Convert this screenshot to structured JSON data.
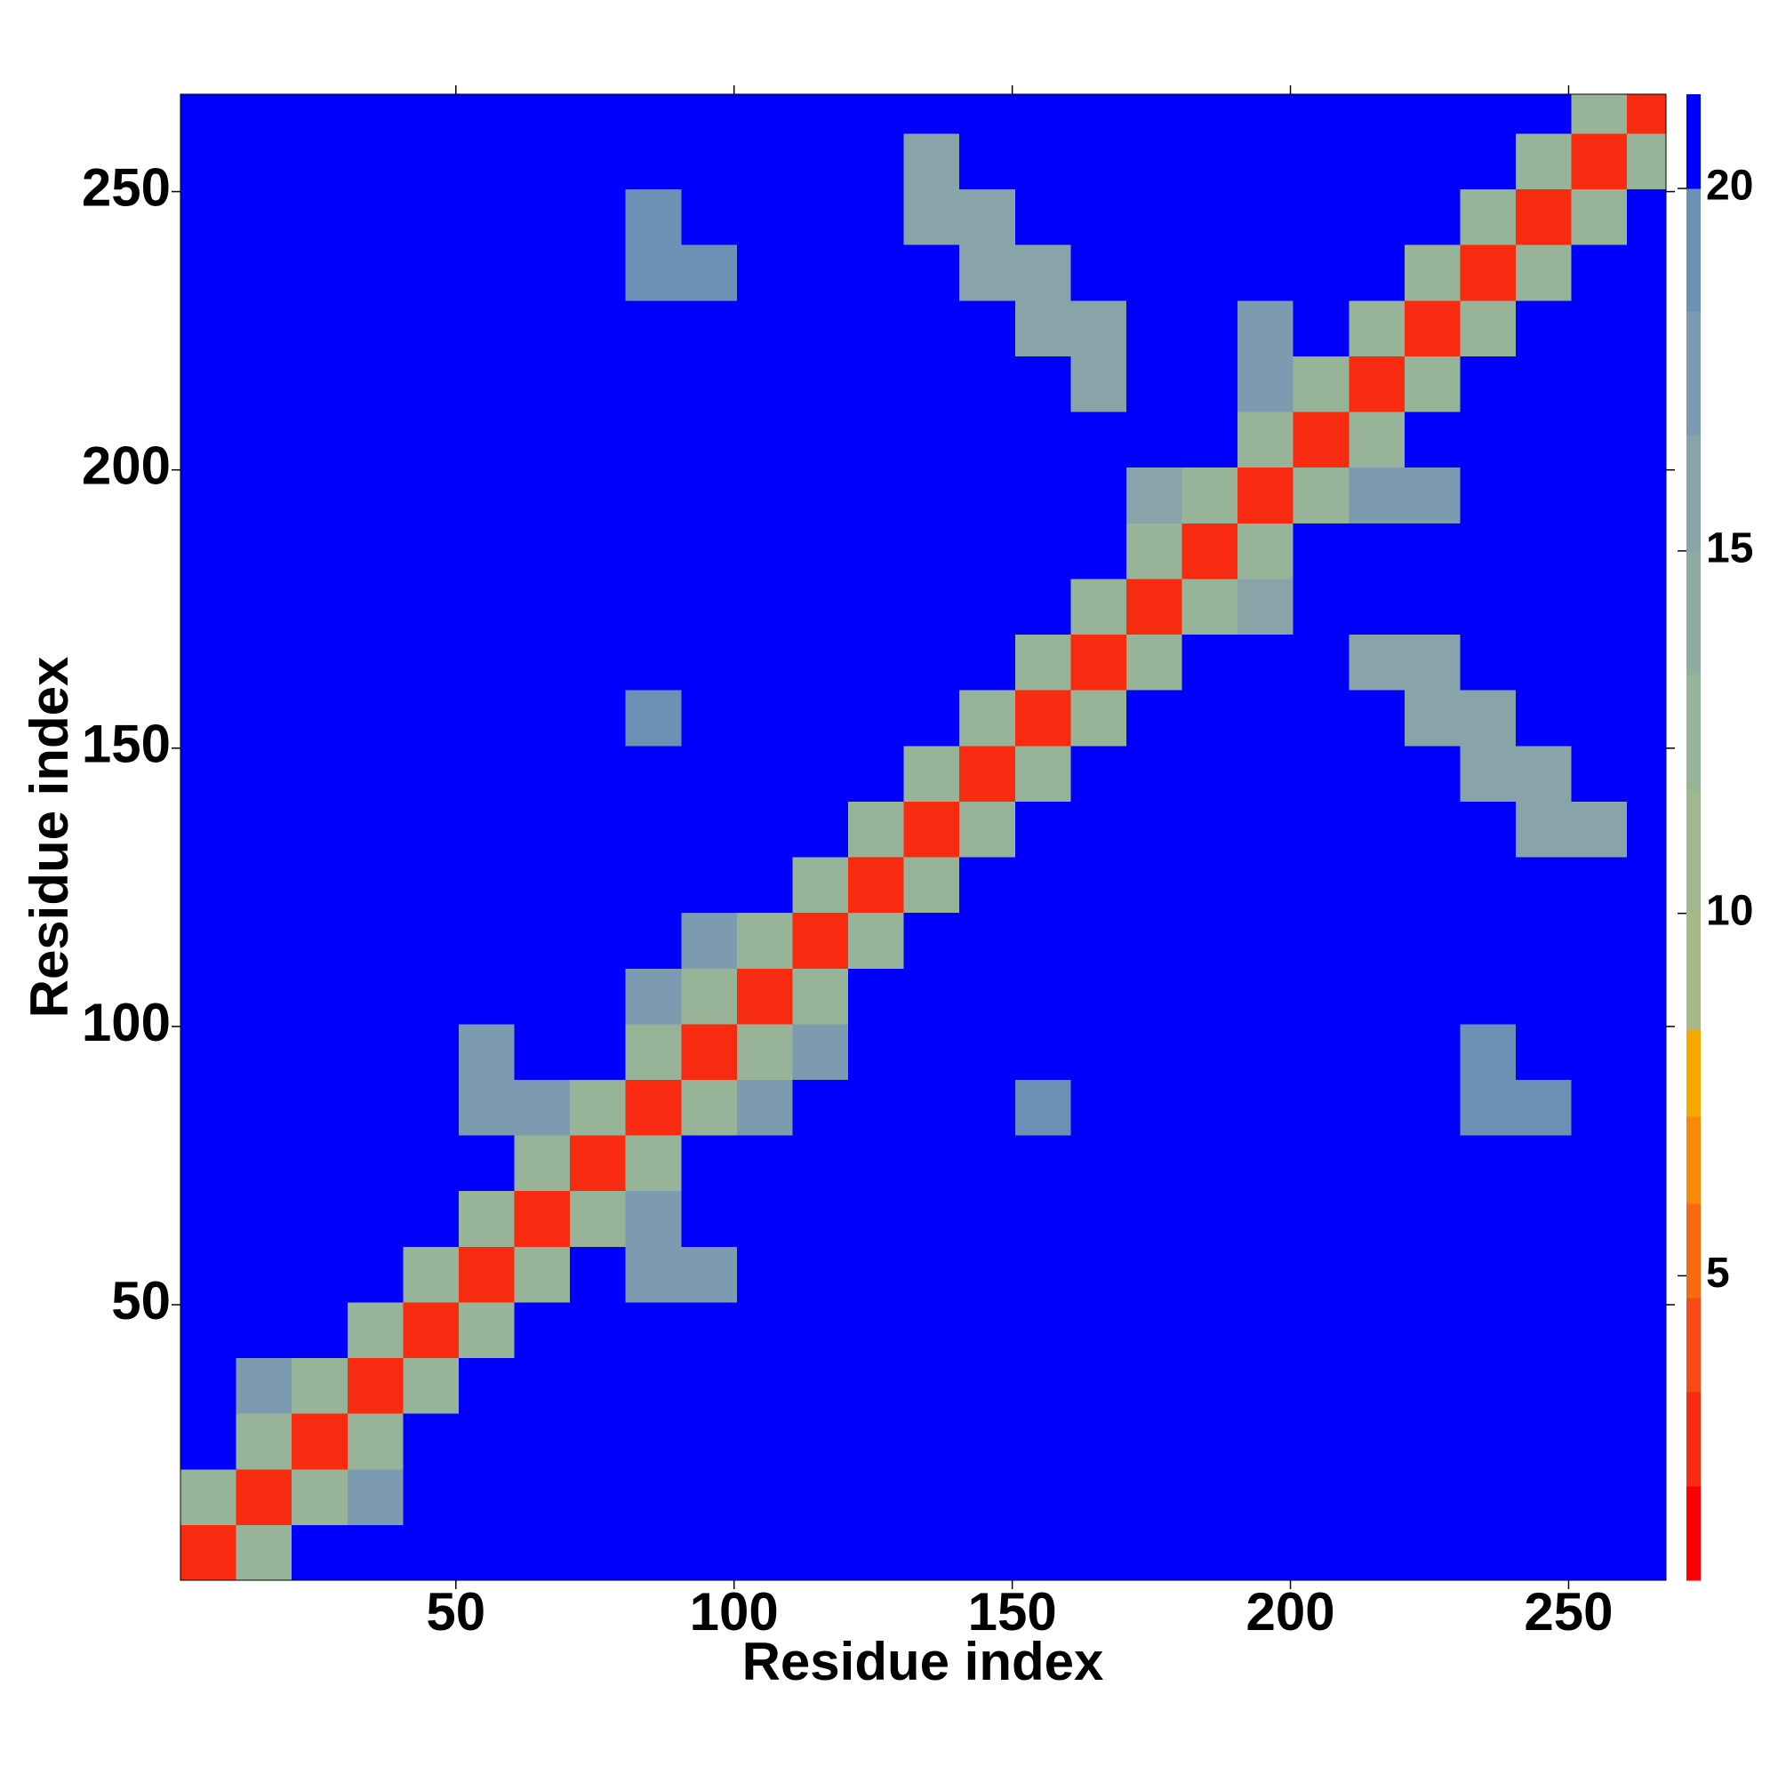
{
  "chart_data": {
    "type": "heatmap",
    "x_label": "Residue index",
    "y_label": "Residue index",
    "xlim": [
      0.5,
      267.5
    ],
    "ylim": [
      0.5,
      267.5
    ],
    "xticks": [
      50,
      100,
      150,
      200,
      250
    ],
    "yticks": [
      50,
      100,
      150,
      200,
      250
    ],
    "xbins": [
      0.5,
      10.5,
      20.5,
      30.5,
      40.5,
      50.5,
      60.5,
      70.5,
      80.5,
      90.5,
      100.5,
      110.5,
      120.5,
      130.5,
      140.5,
      150.5,
      160.5,
      170.5,
      180.5,
      190.5,
      200.5,
      210.5,
      220.5,
      230.5,
      240.5,
      250.5,
      260.5,
      267.5
    ],
    "ybins": [
      0.5,
      10.5,
      20.5,
      30.5,
      40.5,
      50.5,
      60.5,
      70.5,
      80.5,
      90.5,
      100.5,
      110.5,
      120.5,
      130.5,
      140.5,
      150.5,
      160.5,
      170.5,
      180.5,
      190.5,
      200.5,
      210.5,
      220.5,
      230.5,
      240.5,
      250.5,
      260.5,
      267.5
    ],
    "values": [
      [
        3,
        12,
        21,
        21,
        21,
        21,
        21,
        21,
        21,
        21,
        21,
        21,
        21,
        21,
        21,
        21,
        21,
        21,
        21,
        21,
        21,
        21,
        21,
        21,
        21,
        21,
        21
      ],
      [
        12,
        3,
        12,
        17,
        21,
        21,
        21,
        21,
        21,
        21,
        21,
        21,
        21,
        21,
        21,
        21,
        21,
        21,
        21,
        21,
        21,
        21,
        21,
        21,
        21,
        21,
        21
      ],
      [
        21,
        12,
        3,
        12,
        21,
        21,
        21,
        21,
        21,
        21,
        21,
        21,
        21,
        21,
        21,
        21,
        21,
        21,
        21,
        21,
        21,
        21,
        21,
        21,
        21,
        21,
        21
      ],
      [
        21,
        17,
        12,
        3,
        12,
        21,
        21,
        21,
        21,
        21,
        21,
        21,
        21,
        21,
        21,
        21,
        21,
        21,
        21,
        21,
        21,
        21,
        21,
        21,
        21,
        21,
        21
      ],
      [
        21,
        21,
        21,
        12,
        3,
        12,
        21,
        21,
        21,
        21,
        21,
        21,
        21,
        21,
        21,
        21,
        21,
        21,
        21,
        21,
        21,
        21,
        21,
        21,
        21,
        21,
        21
      ],
      [
        21,
        21,
        21,
        21,
        12,
        3,
        12,
        21,
        17,
        17,
        21,
        21,
        21,
        21,
        21,
        21,
        21,
        21,
        21,
        21,
        21,
        21,
        21,
        21,
        21,
        21,
        21
      ],
      [
        21,
        21,
        21,
        21,
        21,
        12,
        3,
        12,
        17,
        21,
        21,
        21,
        21,
        21,
        21,
        21,
        21,
        21,
        21,
        21,
        21,
        21,
        21,
        21,
        21,
        21,
        21
      ],
      [
        21,
        21,
        21,
        21,
        21,
        21,
        12,
        3,
        12,
        21,
        21,
        21,
        21,
        21,
        21,
        21,
        21,
        21,
        21,
        21,
        21,
        21,
        21,
        21,
        21,
        21,
        21
      ],
      [
        21,
        21,
        21,
        21,
        21,
        17,
        17,
        12,
        3,
        12,
        17,
        21,
        21,
        21,
        21,
        19,
        21,
        21,
        21,
        21,
        21,
        21,
        21,
        19,
        19,
        21,
        21
      ],
      [
        21,
        21,
        21,
        21,
        21,
        17,
        21,
        21,
        12,
        3,
        12,
        17,
        21,
        21,
        21,
        21,
        21,
        21,
        21,
        21,
        21,
        21,
        21,
        19,
        21,
        21,
        21
      ],
      [
        21,
        21,
        21,
        21,
        21,
        21,
        21,
        21,
        17,
        12,
        3,
        12,
        21,
        21,
        21,
        21,
        21,
        21,
        21,
        21,
        21,
        21,
        21,
        21,
        21,
        21,
        21
      ],
      [
        21,
        21,
        21,
        21,
        21,
        21,
        21,
        21,
        21,
        17,
        12,
        3,
        12,
        21,
        21,
        21,
        21,
        21,
        21,
        21,
        21,
        21,
        21,
        21,
        21,
        21,
        21
      ],
      [
        21,
        21,
        21,
        21,
        21,
        21,
        21,
        21,
        21,
        21,
        21,
        12,
        3,
        12,
        21,
        21,
        21,
        21,
        21,
        21,
        21,
        21,
        21,
        21,
        21,
        21,
        21
      ],
      [
        21,
        21,
        21,
        21,
        21,
        21,
        21,
        21,
        21,
        21,
        21,
        21,
        12,
        3,
        12,
        21,
        21,
        21,
        21,
        21,
        21,
        21,
        21,
        21,
        16,
        16,
        21
      ],
      [
        21,
        21,
        21,
        21,
        21,
        21,
        21,
        21,
        21,
        21,
        21,
        21,
        21,
        12,
        3,
        12,
        21,
        21,
        21,
        21,
        21,
        21,
        21,
        16,
        16,
        21,
        21
      ],
      [
        21,
        21,
        21,
        21,
        21,
        21,
        21,
        21,
        19,
        21,
        21,
        21,
        21,
        21,
        12,
        3,
        12,
        21,
        21,
        21,
        21,
        21,
        16,
        16,
        21,
        21,
        21
      ],
      [
        21,
        21,
        21,
        21,
        21,
        21,
        21,
        21,
        21,
        21,
        21,
        21,
        21,
        21,
        21,
        12,
        3,
        12,
        21,
        21,
        21,
        16,
        16,
        21,
        21,
        21,
        21
      ],
      [
        21,
        21,
        21,
        21,
        21,
        21,
        21,
        21,
        21,
        21,
        21,
        21,
        21,
        21,
        21,
        21,
        12,
        3,
        12,
        16,
        21,
        21,
        21,
        21,
        21,
        21,
        21
      ],
      [
        21,
        21,
        21,
        21,
        21,
        21,
        21,
        21,
        21,
        21,
        21,
        21,
        21,
        21,
        21,
        21,
        21,
        12,
        3,
        12,
        21,
        21,
        21,
        21,
        21,
        21,
        21
      ],
      [
        21,
        21,
        21,
        21,
        21,
        21,
        21,
        21,
        21,
        21,
        21,
        21,
        21,
        21,
        21,
        21,
        21,
        16,
        12,
        3,
        12,
        18,
        18,
        21,
        21,
        21,
        21
      ],
      [
        21,
        21,
        21,
        21,
        21,
        21,
        21,
        21,
        21,
        21,
        21,
        21,
        21,
        21,
        21,
        21,
        21,
        21,
        21,
        12,
        3,
        12,
        21,
        21,
        21,
        21,
        21
      ],
      [
        21,
        21,
        21,
        21,
        21,
        21,
        21,
        21,
        21,
        21,
        21,
        21,
        21,
        21,
        21,
        21,
        16,
        21,
        21,
        18,
        12,
        3,
        12,
        21,
        21,
        21,
        21
      ],
      [
        21,
        21,
        21,
        21,
        21,
        21,
        21,
        21,
        21,
        21,
        21,
        21,
        21,
        21,
        21,
        16,
        16,
        21,
        21,
        18,
        21,
        12,
        3,
        12,
        21,
        21,
        21
      ],
      [
        21,
        21,
        21,
        21,
        21,
        21,
        21,
        21,
        19,
        19,
        21,
        21,
        21,
        21,
        16,
        16,
        21,
        21,
        21,
        21,
        21,
        21,
        12,
        3,
        12,
        21,
        21
      ],
      [
        21,
        21,
        21,
        21,
        21,
        21,
        21,
        21,
        19,
        21,
        21,
        21,
        21,
        16,
        16,
        21,
        21,
        21,
        21,
        21,
        21,
        21,
        21,
        12,
        3,
        12,
        21
      ],
      [
        21,
        21,
        21,
        21,
        21,
        21,
        21,
        21,
        21,
        21,
        21,
        21,
        21,
        16,
        21,
        21,
        21,
        21,
        21,
        21,
        21,
        21,
        21,
        21,
        12,
        3,
        12
      ],
      [
        21,
        21,
        21,
        21,
        21,
        21,
        21,
        21,
        21,
        21,
        21,
        21,
        21,
        21,
        21,
        21,
        21,
        21,
        21,
        21,
        21,
        21,
        21,
        21,
        21,
        12,
        3
      ]
    ],
    "colorbar": {
      "levels": [
        0.8,
        2.1,
        3.4,
        4.7,
        6.0,
        7.2,
        8.4,
        10.0,
        11.7,
        13.3,
        15.0,
        16.6,
        18.3,
        20.0,
        21.3
      ],
      "colors": [
        "#ff0000",
        "#f82a10",
        "#f74a18",
        "#f86a10",
        "#f88a08",
        "#f8a800",
        "#a8b888",
        "#a0b890",
        "#98b498",
        "#90aca0",
        "#88a4a8",
        "#7c9ab0",
        "#6e90b4",
        "#0000ff"
      ],
      "ticks": [
        5,
        10,
        15,
        20
      ]
    }
  }
}
